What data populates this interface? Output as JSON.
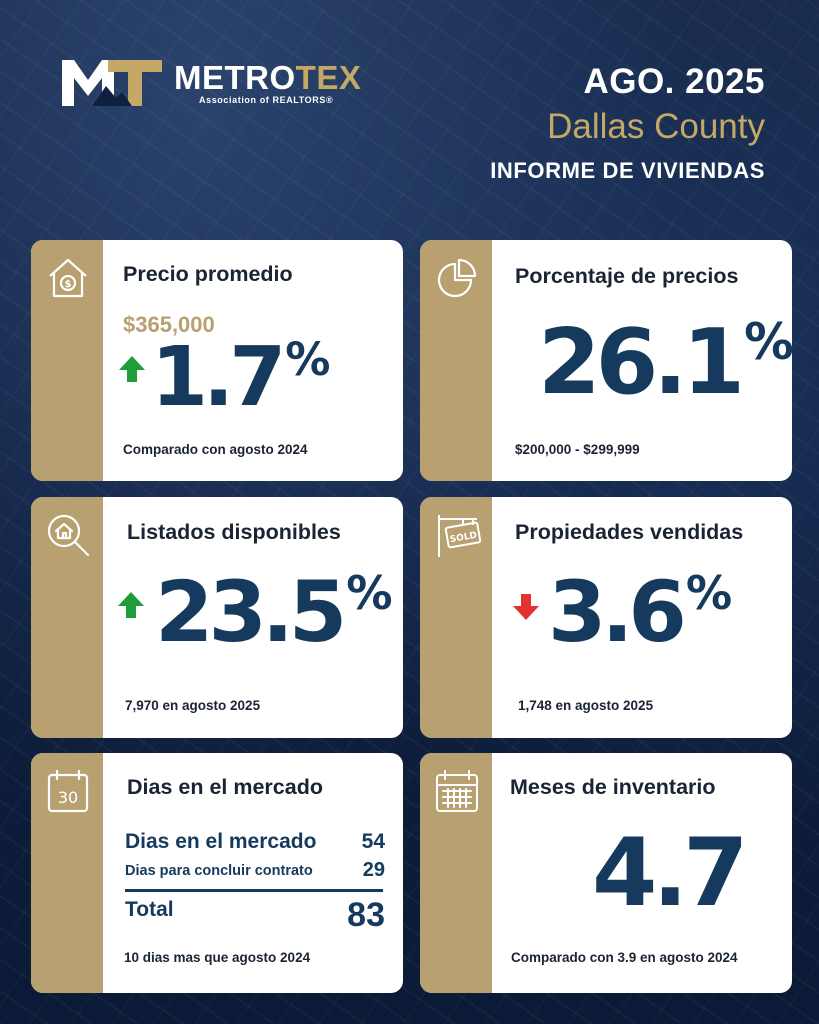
{
  "brand": {
    "name_part1": "METRO",
    "name_part2": "TEX",
    "tagline": "Association of REALTORS®"
  },
  "header": {
    "month": "AGO. 2025",
    "county": "Dallas County",
    "report_title": "INFORME DE VIVIENDAS"
  },
  "colors": {
    "gold": "#b8a070",
    "navy": "#163a5e",
    "up_green": "#1f9d3a",
    "down_red": "#e0332f"
  },
  "cards": {
    "avg_price": {
      "icon": "house-dollar-icon",
      "title": "Precio promedio",
      "price": "$365,000",
      "direction": "up",
      "value": "1.7",
      "unit": "%",
      "footnote": "Comparado con agosto 2024"
    },
    "price_share": {
      "icon": "pie-chart-icon",
      "title": "Porcentaje de precios",
      "value": "26.1",
      "unit": "%",
      "footnote": "$200,000 - $299,999"
    },
    "active_listings": {
      "icon": "house-search-icon",
      "title": "Listados disponibles",
      "direction": "up",
      "value": "23.5",
      "unit": "%",
      "footnote": "7,970 en agosto 2025"
    },
    "sold": {
      "icon": "sold-sign-icon",
      "title": "Propiedades vendidas",
      "direction": "down",
      "value": "3.6",
      "unit": "%",
      "footnote": "1,748 en agosto 2025"
    },
    "days_on_market": {
      "icon": "calendar-30-icon",
      "icon_text": "30",
      "title": "Dias en el mercado",
      "rows": [
        {
          "label": "Dias en el mercado",
          "value": "54"
        },
        {
          "label": "Dias para concluir contrato",
          "value": "29"
        }
      ],
      "total_label": "Total",
      "total_value": "83",
      "footnote": "10 dias mas que agosto 2024"
    },
    "months_inventory": {
      "icon": "calendar-grid-icon",
      "title": "Meses de inventario",
      "value": "4.7",
      "footnote": "Comparado con 3.9 en agosto 2024"
    }
  }
}
